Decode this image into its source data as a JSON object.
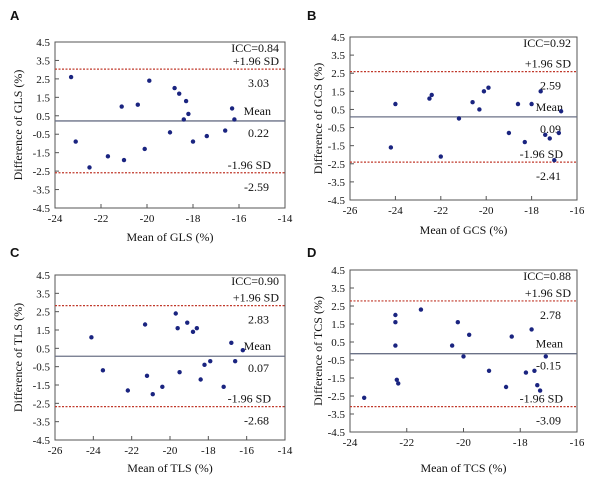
{
  "chart_data": [
    {
      "type": "scatter",
      "panel": "A",
      "xlabel": "Mean of GLS (%)",
      "ylabel": "Difference of GLS (%)",
      "xlim": [
        -24,
        -14
      ],
      "ylim": [
        -4.5,
        4.5
      ],
      "xticks": [
        "-24",
        "-22",
        "-20",
        "-18",
        "-16",
        "-14"
      ],
      "yticks": [
        "4.5",
        "3.5",
        "2.5",
        "1.5",
        "0.5",
        "-0.5",
        "-1.5",
        "-2.5",
        "-3.5",
        "-4.5"
      ],
      "grid": false,
      "icc": "ICC=0.84",
      "upper_label": "+1.96 SD",
      "upper_value": "3.03",
      "mean_label": "Mean",
      "mean_value": "0.22",
      "lower_label": "-1.96 SD",
      "lower_value": "-2.59",
      "upper": 3.03,
      "mean": 0.22,
      "lower": -2.59,
      "x": [
        -23.3,
        -23.1,
        -22.5,
        -21.7,
        -21.1,
        -21.0,
        -20.4,
        -20.1,
        -19.9,
        -19.0,
        -18.8,
        -18.6,
        -18.4,
        -18.3,
        -18.2,
        -18.0,
        -17.4,
        -16.6,
        -16.3,
        -16.2
      ],
      "y": [
        2.6,
        -0.9,
        -2.3,
        -1.7,
        1.0,
        -1.9,
        1.1,
        -1.3,
        2.4,
        -0.4,
        2.0,
        1.7,
        0.3,
        1.3,
        0.6,
        -0.9,
        -0.6,
        -0.3,
        0.9,
        0.3
      ]
    },
    {
      "type": "scatter",
      "panel": "B",
      "xlabel": "Mean of GCS (%)",
      "ylabel": "Difference of GCS (%)",
      "xlim": [
        -26,
        -16
      ],
      "ylim": [
        -4.5,
        4.5
      ],
      "xticks": [
        "-26",
        "-24",
        "-22",
        "-20",
        "-18",
        "-16"
      ],
      "yticks": [
        "4.5",
        "3.5",
        "2.5",
        "1.5",
        "0.5",
        "-0.5",
        "-1.5",
        "-2.5",
        "-3.5",
        "-4.5"
      ],
      "grid": false,
      "icc": "ICC=0.92",
      "upper_label": "+1.96 SD",
      "upper_value": "2.59",
      "mean_label": "Mean",
      "mean_value": "0.09",
      "lower_label": "-1.96 SD",
      "lower_value": "-2.41",
      "upper": 2.59,
      "mean": 0.09,
      "lower": -2.41,
      "x": [
        -24.2,
        -24.0,
        -22.5,
        -22.4,
        -22.0,
        -21.2,
        -20.6,
        -20.3,
        -20.1,
        -19.9,
        -19.0,
        -18.6,
        -18.3,
        -18.0,
        -17.6,
        -17.4,
        -17.2,
        -17.0,
        -16.8,
        -16.7
      ],
      "y": [
        -1.6,
        0.8,
        1.1,
        1.3,
        -2.1,
        0.0,
        0.9,
        0.5,
        1.5,
        1.7,
        -0.8,
        0.8,
        -1.3,
        0.8,
        1.5,
        -0.9,
        -1.1,
        -2.3,
        -0.8,
        0.4
      ]
    },
    {
      "type": "scatter",
      "panel": "C",
      "xlabel": "Mean of TLS (%)",
      "ylabel": "Difference of TLS (%)",
      "xlim": [
        -26,
        -14
      ],
      "ylim": [
        -4.5,
        4.5
      ],
      "xticks": [
        "-26",
        "-24",
        "-22",
        "-20",
        "-18",
        "-16",
        "-14"
      ],
      "yticks": [
        "4.5",
        "3.5",
        "2.5",
        "1.5",
        "0.5",
        "-0.5",
        "-1.5",
        "-2.5",
        "-3.5",
        "-4.5"
      ],
      "grid": false,
      "icc": "ICC=0.90",
      "upper_label": "+1.96 SD",
      "upper_value": "2.83",
      "mean_label": "Mean",
      "mean_value": "0.07",
      "lower_label": "-1.96 SD",
      "lower_value": "-2.68",
      "upper": 2.83,
      "mean": 0.07,
      "lower": -2.68,
      "x": [
        -24.1,
        -23.5,
        -22.2,
        -21.3,
        -21.2,
        -20.9,
        -20.4,
        -19.7,
        -19.6,
        -19.5,
        -19.1,
        -18.8,
        -18.6,
        -18.4,
        -18.2,
        -17.9,
        -17.2,
        -16.8,
        -16.6,
        -16.2
      ],
      "y": [
        1.1,
        -0.7,
        -1.8,
        1.8,
        -1.0,
        -2.0,
        -1.6,
        2.4,
        1.6,
        -0.8,
        1.9,
        1.4,
        1.6,
        -1.2,
        -0.4,
        -0.2,
        -1.6,
        0.8,
        -0.2,
        0.4
      ]
    },
    {
      "type": "scatter",
      "panel": "D",
      "xlabel": "Mean of TCS (%)",
      "ylabel": "Difference of TCS (%)",
      "xlim": [
        -24,
        -16
      ],
      "ylim": [
        -4.5,
        4.5
      ],
      "xticks": [
        "-24",
        "-22",
        "-20",
        "-18",
        "-16"
      ],
      "yticks": [
        "4.5",
        "3.5",
        "2.5",
        "1.5",
        "0.5",
        "-0.5",
        "-1.5",
        "-2.5",
        "-3.5",
        "-4.5"
      ],
      "grid": false,
      "icc": "ICC=0.88",
      "upper_label": "+1.96 SD",
      "upper_value": "2.78",
      "mean_label": "Mean",
      "mean_value": "-0.15",
      "lower_label": "-1.96 SD",
      "lower_value": "-3.09",
      "upper": 2.78,
      "mean": -0.15,
      "lower": -3.09,
      "x": [
        -23.5,
        -22.4,
        -22.4,
        -22.4,
        -22.35,
        -22.3,
        -21.5,
        -20.4,
        -20.2,
        -20.0,
        -19.8,
        -19.1,
        -18.5,
        -18.3,
        -17.8,
        -17.6,
        -17.5,
        -17.4,
        -17.3,
        -17.1
      ],
      "y": [
        -2.6,
        2.0,
        1.6,
        0.3,
        -1.6,
        -1.8,
        2.3,
        0.3,
        1.6,
        -0.3,
        0.9,
        -1.1,
        -2.0,
        0.8,
        -1.2,
        1.2,
        -1.1,
        -1.9,
        -2.2,
        -0.3
      ]
    }
  ]
}
